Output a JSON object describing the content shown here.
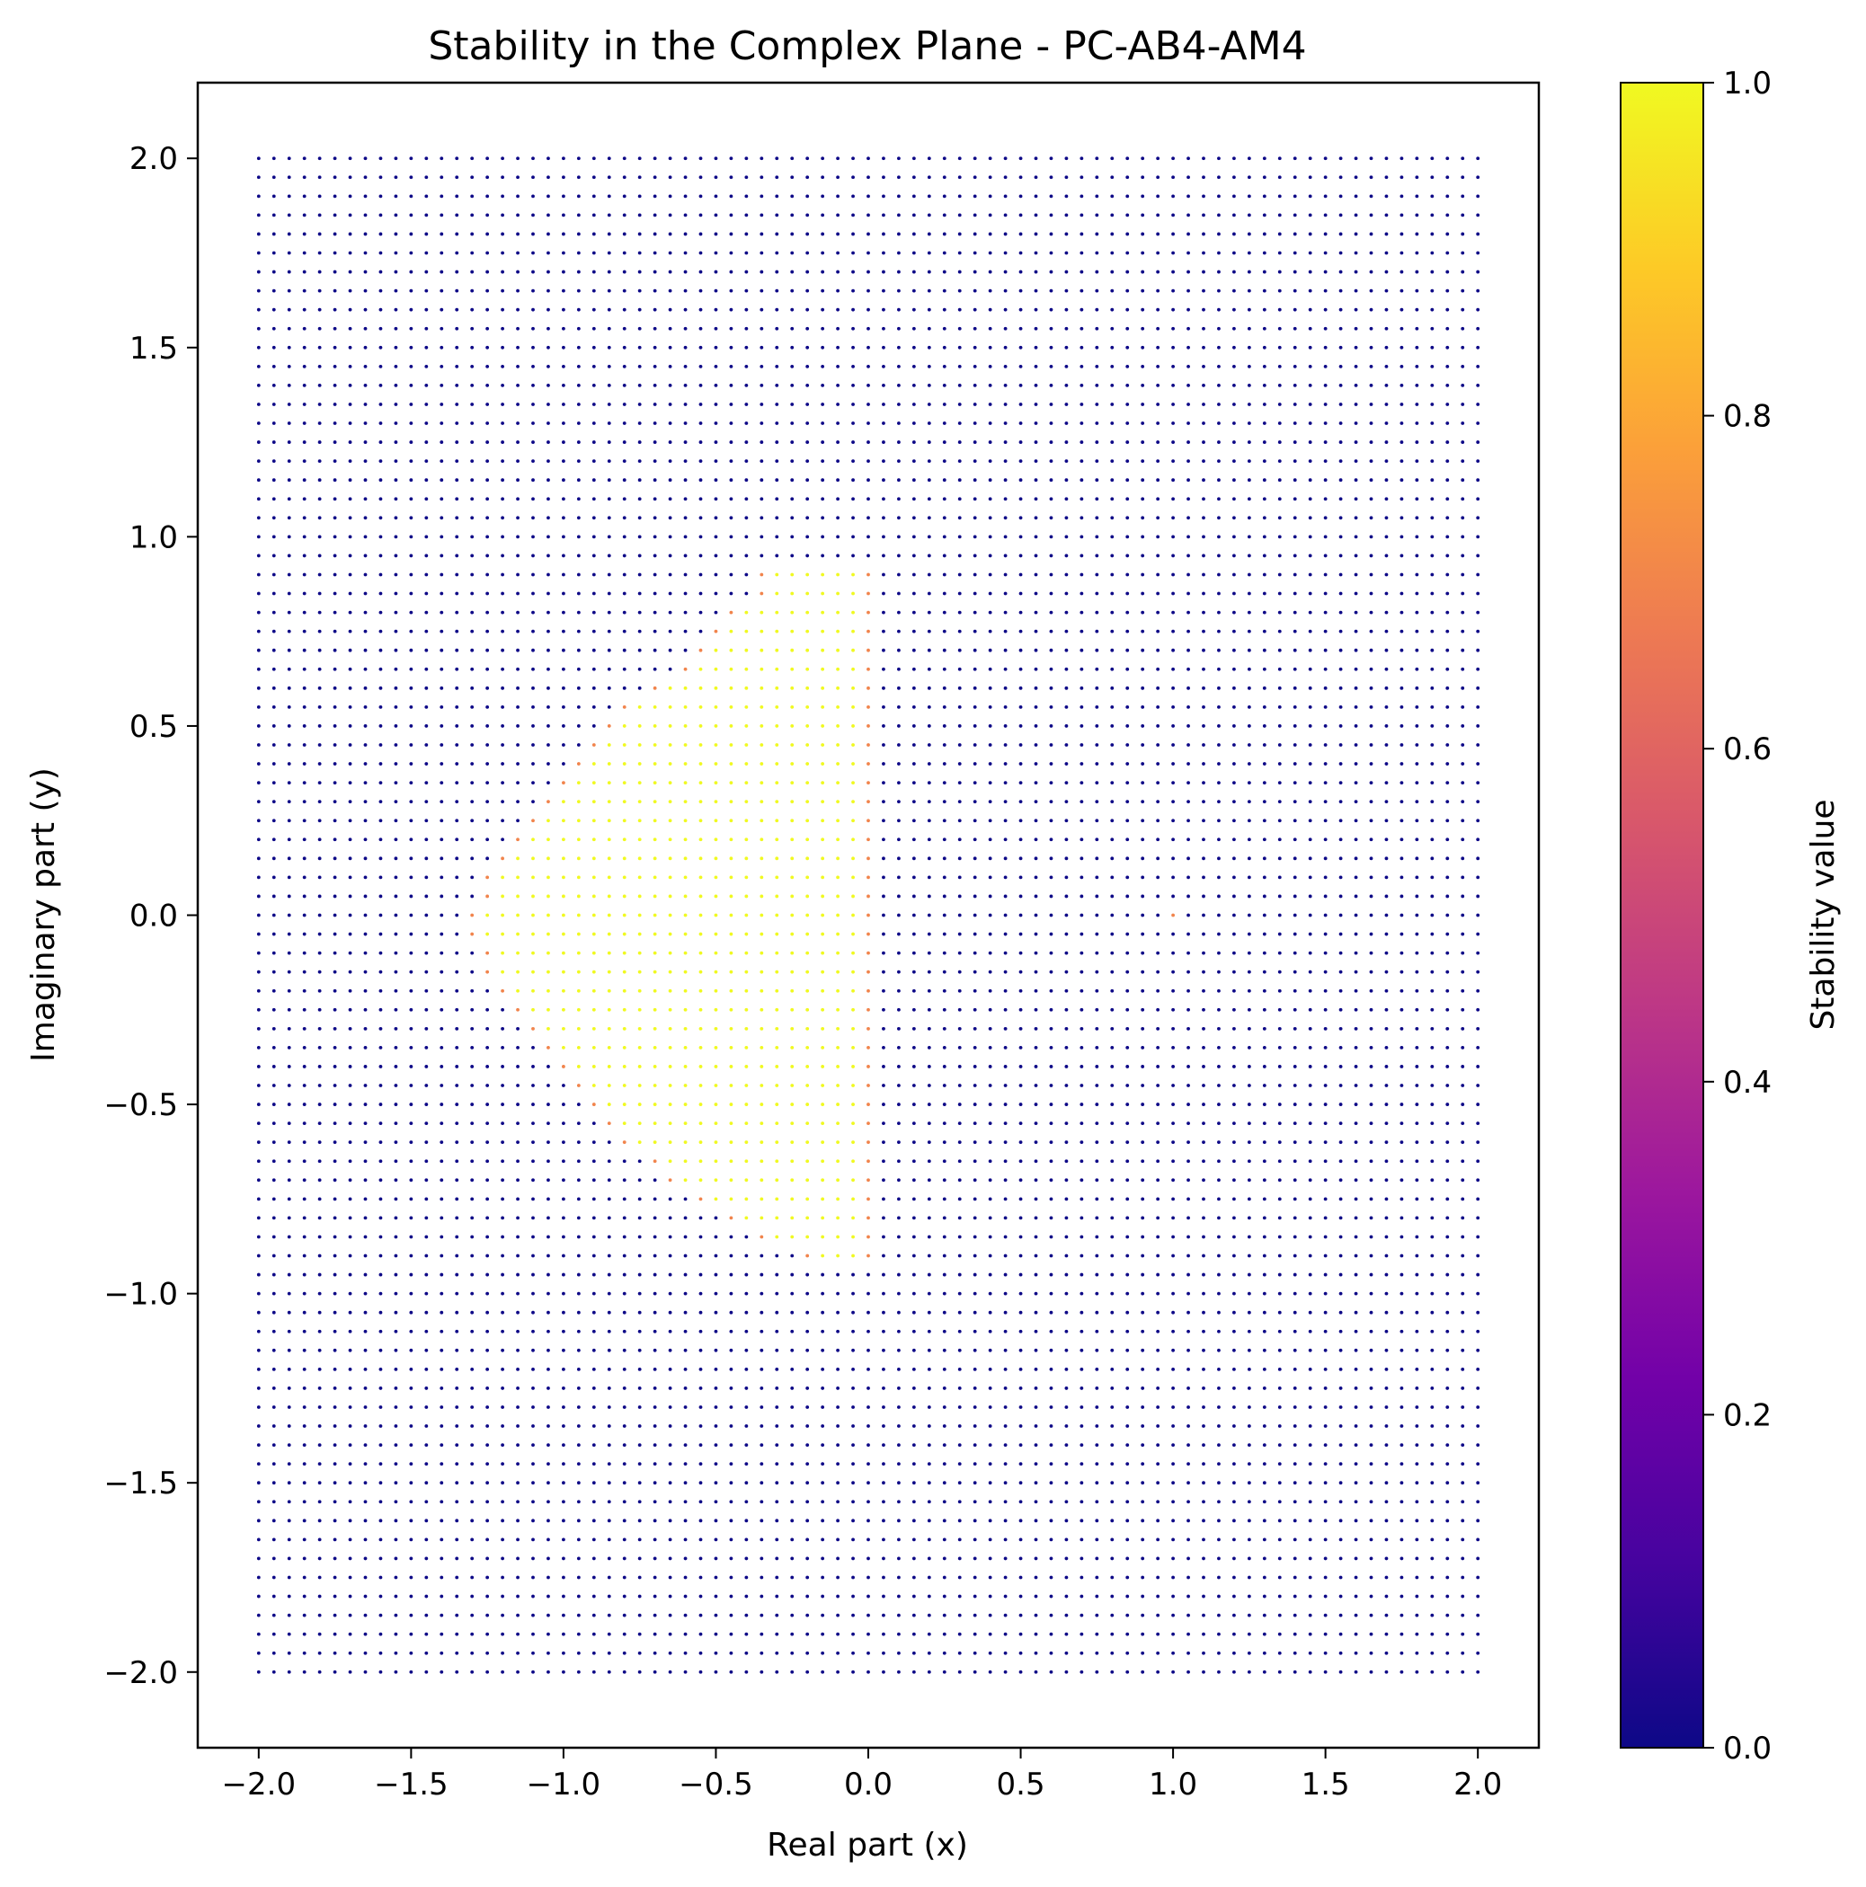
{
  "chart_data": {
    "type": "scatter",
    "title": "Stability in the Complex Plane - PC-AB4-AM4",
    "xlabel": "Real part (x)",
    "ylabel": "Imaginary part (y)",
    "xlim": [
      -2.2,
      2.2
    ],
    "ylim": [
      -2.2,
      2.2
    ],
    "x_ticks": [
      "−2.0",
      "−1.5",
      "−1.0",
      "−0.5",
      "0.0",
      "0.5",
      "1.0",
      "1.5",
      "2.0"
    ],
    "y_ticks": [
      "−2.0",
      "−1.5",
      "−1.0",
      "−0.5",
      "0.0",
      "0.5",
      "1.0",
      "1.5",
      "2.0"
    ],
    "grid": false,
    "grid_points": {
      "x_start": -2.0,
      "x_end": 2.0,
      "y_start": -2.0,
      "y_end": 2.0,
      "step": 0.05,
      "default_value": 0.0
    },
    "stable_region": {
      "value": 1.0,
      "boundary_value": 0.7,
      "rows": [
        {
          "y": 0.9,
          "x_min": -0.3,
          "x_max": -0.05
        },
        {
          "y": 0.85,
          "x_min": -0.3,
          "x_max": -0.05
        },
        {
          "y": 0.8,
          "x_min": -0.4,
          "x_max": -0.05
        },
        {
          "y": 0.75,
          "x_min": -0.45,
          "x_max": -0.05
        },
        {
          "y": 0.7,
          "x_min": -0.5,
          "x_max": -0.05
        },
        {
          "y": 0.65,
          "x_min": -0.55,
          "x_max": -0.05
        },
        {
          "y": 0.6,
          "x_min": -0.65,
          "x_max": -0.05
        },
        {
          "y": 0.55,
          "x_min": -0.75,
          "x_max": -0.05
        },
        {
          "y": 0.5,
          "x_min": -0.8,
          "x_max": -0.05
        },
        {
          "y": 0.45,
          "x_min": -0.85,
          "x_max": -0.05
        },
        {
          "y": 0.4,
          "x_min": -0.9,
          "x_max": -0.05
        },
        {
          "y": 0.35,
          "x_min": -0.95,
          "x_max": -0.05
        },
        {
          "y": 0.3,
          "x_min": -1.0,
          "x_max": -0.05
        },
        {
          "y": 0.25,
          "x_min": -1.05,
          "x_max": -0.05
        },
        {
          "y": 0.2,
          "x_min": -1.1,
          "x_max": -0.05
        },
        {
          "y": 0.15,
          "x_min": -1.15,
          "x_max": -0.05
        },
        {
          "y": 0.1,
          "x_min": -1.2,
          "x_max": -0.05
        },
        {
          "y": 0.05,
          "x_min": -1.2,
          "x_max": -0.05
        },
        {
          "y": 0.0,
          "x_min": -1.25,
          "x_max": -0.05
        },
        {
          "y": -0.05,
          "x_min": -1.25,
          "x_max": -0.05
        },
        {
          "y": -0.1,
          "x_min": -1.2,
          "x_max": -0.05
        },
        {
          "y": -0.15,
          "x_min": -1.2,
          "x_max": -0.05
        },
        {
          "y": -0.2,
          "x_min": -1.15,
          "x_max": -0.05
        },
        {
          "y": -0.25,
          "x_min": -1.1,
          "x_max": -0.05
        },
        {
          "y": -0.3,
          "x_min": -1.05,
          "x_max": -0.05
        },
        {
          "y": -0.35,
          "x_min": -1.0,
          "x_max": -0.05
        },
        {
          "y": -0.4,
          "x_min": -0.95,
          "x_max": -0.05
        },
        {
          "y": -0.45,
          "x_min": -0.9,
          "x_max": -0.05
        },
        {
          "y": -0.5,
          "x_min": -0.85,
          "x_max": -0.05
        },
        {
          "y": -0.55,
          "x_min": -0.8,
          "x_max": -0.05
        },
        {
          "y": -0.6,
          "x_min": -0.75,
          "x_max": -0.05
        },
        {
          "y": -0.65,
          "x_min": -0.65,
          "x_max": -0.05
        },
        {
          "y": -0.7,
          "x_min": -0.6,
          "x_max": -0.05
        },
        {
          "y": -0.75,
          "x_min": -0.5,
          "x_max": -0.05
        },
        {
          "y": -0.8,
          "x_min": -0.4,
          "x_max": -0.05
        },
        {
          "y": -0.85,
          "x_min": -0.3,
          "x_max": -0.05
        },
        {
          "y": -0.9,
          "x_min": -0.15,
          "x_max": -0.05
        }
      ],
      "isolated_points": [
        {
          "x": 1.0,
          "y": 0.0,
          "value": 0.7
        }
      ]
    },
    "colorbar": {
      "label": "Stability value",
      "colormap": "plasma",
      "range": [
        0.0,
        1.0
      ],
      "ticks": [
        "0.0",
        "0.2",
        "0.4",
        "0.6",
        "0.8",
        "1.0"
      ],
      "colors": [
        "#0d0887",
        "#46039f",
        "#7201a8",
        "#9c179e",
        "#bd3786",
        "#d8576b",
        "#ed7953",
        "#fb9f3a",
        "#fdca26",
        "#f0f921"
      ]
    }
  }
}
